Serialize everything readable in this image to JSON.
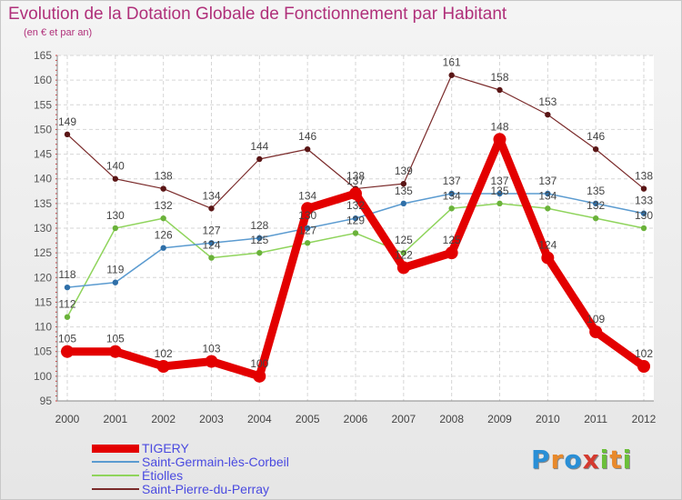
{
  "title": "Evolution de la Dotation Globale de Fonctionnement par Habitant",
  "subtitle": "(en € et par an)",
  "logo": {
    "text": "Proxiti",
    "letters": [
      "P",
      "r",
      "o",
      "x",
      "i",
      "t",
      "i"
    ],
    "colors": [
      "#2a8fd6",
      "#e8892b",
      "#2a8fd6",
      "#d43a2f",
      "#6bbf3a",
      "#e8892b",
      "#6bbf3a"
    ]
  },
  "chart_data": {
    "type": "line",
    "title": "Evolution de la Dotation Globale de Fonctionnement par Habitant",
    "subtitle": "(en € et par an)",
    "x": [
      "2000",
      "2001",
      "2002",
      "2003",
      "2004",
      "2005",
      "2006",
      "2007",
      "2008",
      "2009",
      "2010",
      "2011",
      "2012"
    ],
    "ylim": [
      95,
      165
    ],
    "yticks": [
      95,
      100,
      105,
      110,
      115,
      120,
      125,
      130,
      135,
      140,
      145,
      150,
      155,
      160,
      165
    ],
    "grid": true,
    "legend_position": "bottom",
    "series": [
      {
        "name": "TIGERY",
        "color": "#e30000",
        "width": 9,
        "marker": 7,
        "values": [
          105,
          105,
          102,
          103,
          100,
          134,
          137,
          122,
          125,
          148,
          124,
          109,
          102
        ]
      },
      {
        "name": "Saint-Germain-lès-Corbeil",
        "color": "#5b9bd0",
        "width": 1.5,
        "marker": 3.2,
        "values": [
          118,
          119,
          126,
          127,
          128,
          130,
          132,
          135,
          137,
          137,
          137,
          135,
          133
        ]
      },
      {
        "name": "Étiolles",
        "color": "#8fd45c",
        "width": 1.5,
        "marker": 3.2,
        "values": [
          112,
          130,
          132,
          124,
          125,
          127,
          129,
          125,
          134,
          135,
          134,
          132,
          130
        ]
      },
      {
        "name": "Saint-Pierre-du-Perray",
        "color": "#7a2a2a",
        "width": 1.2,
        "marker": 3.2,
        "values": [
          149,
          140,
          138,
          134,
          144,
          146,
          138,
          139,
          161,
          158,
          153,
          146,
          138
        ]
      }
    ]
  }
}
